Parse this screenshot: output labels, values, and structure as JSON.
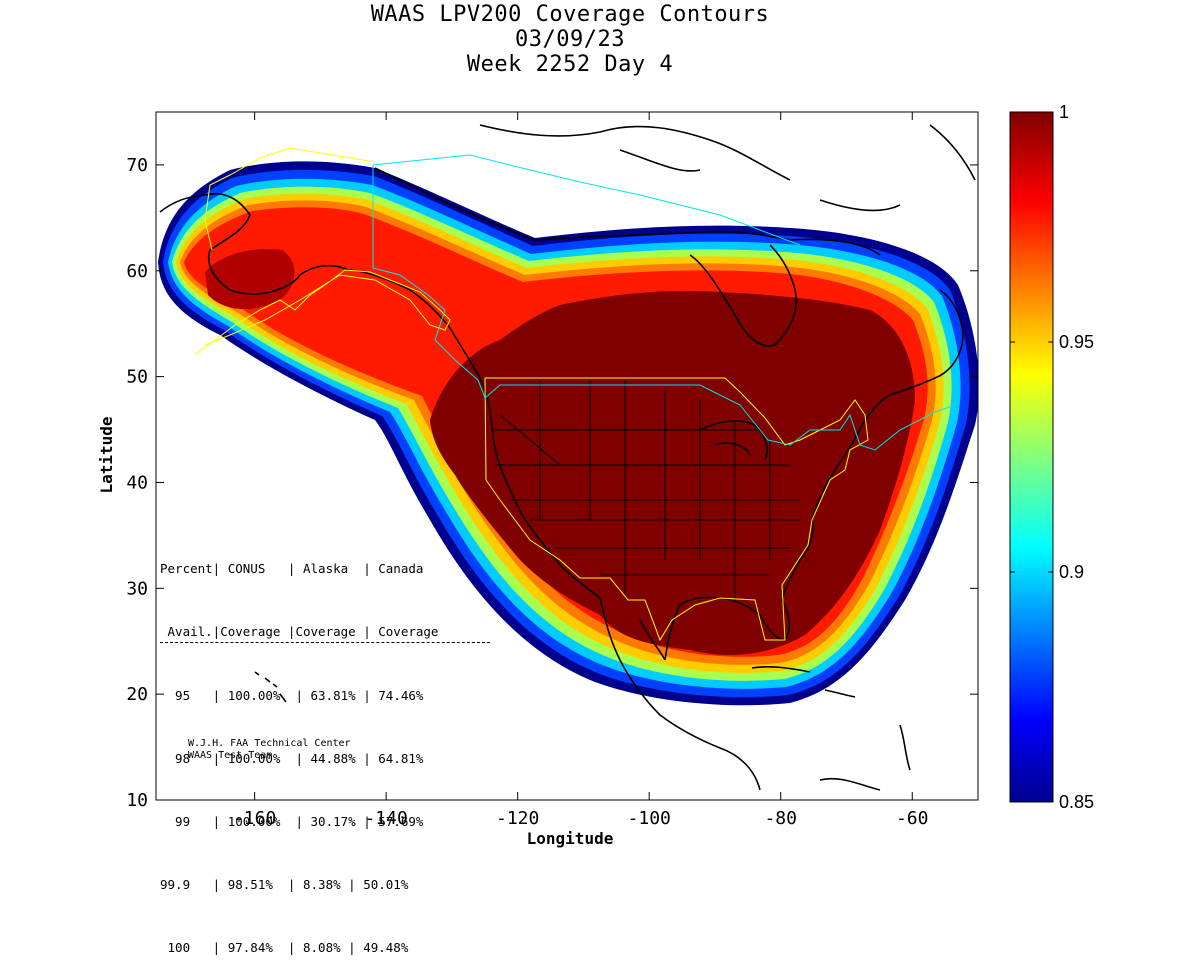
{
  "title_lines": [
    "WAAS LPV200 Coverage Contours",
    "03/09/23",
    "Week 2252 Day 4"
  ],
  "chart_data": {
    "type": "heatmap",
    "title": "WAAS LPV200 Coverage Contours",
    "date": "03/09/23",
    "subtitle": "Week 2252 Day 4",
    "xlabel": "Longitude",
    "ylabel": "Latitude",
    "xlim": [
      -175,
      -50
    ],
    "ylim": [
      10,
      75
    ],
    "x_ticks": [
      -160,
      -140,
      -120,
      -100,
      -80,
      -60
    ],
    "y_ticks": [
      10,
      20,
      30,
      40,
      50,
      60,
      70
    ],
    "x_tick_labels": [
      "-160",
      "-140",
      "-120",
      "-100",
      "-80",
      "-60"
    ],
    "y_tick_labels": [
      "10",
      "20",
      "30",
      "40",
      "50",
      "60",
      "70"
    ],
    "colorbar": {
      "min": 0.85,
      "max": 1,
      "ticks": [
        1,
        0.95,
        0.9,
        0.85
      ],
      "tick_labels": [
        "1",
        "0.95",
        "0.9",
        "0.85"
      ],
      "colormap": "jet"
    },
    "coverage_table": {
      "header_row1": [
        "Percent",
        "CONUS",
        "Alaska",
        "Canada"
      ],
      "header_row2": [
        "Avail.",
        "Coverage",
        "Coverage",
        "Coverage"
      ],
      "rows": [
        [
          "95",
          "100.00%",
          "63.81%",
          "74.46%"
        ],
        [
          "98",
          "100.00%",
          "44.88%",
          "64.81%"
        ],
        [
          "99",
          "100.00%",
          "30.17%",
          "57.69%"
        ],
        [
          "99.9",
          "98.51%",
          "8.38%",
          "50.01%"
        ],
        [
          "100",
          "97.84%",
          "8.08%",
          "49.48%"
        ]
      ]
    }
  },
  "table_lines": [
    "Percent| CONUS   | Alaska  | Canada",
    " Avail.|Coverage |Coverage | Coverage",
    "  95   | 100.00%  | 63.81% | 74.46%",
    "  98   | 100.00%  | 44.88% | 64.81%",
    "  99   | 100.00%  | 30.17% | 57.69%",
    "99.9   | 98.51%  | 8.38% | 50.01%",
    " 100   | 97.84%  | 8.08% | 49.48%"
  ],
  "credit_lines": [
    "W.J.H. FAA Technical Center",
    "WAAS Test Team"
  ],
  "colors": {
    "deep_red": "#800000",
    "red": "#ff1a00",
    "orange": "#ff8c00",
    "yellow": "#ffee00",
    "cyan": "#00e5ff",
    "blue": "#0040ff",
    "navy": "#00008f",
    "outline_yellow": "#ffff00",
    "outline_cyan": "#00e5ee"
  }
}
